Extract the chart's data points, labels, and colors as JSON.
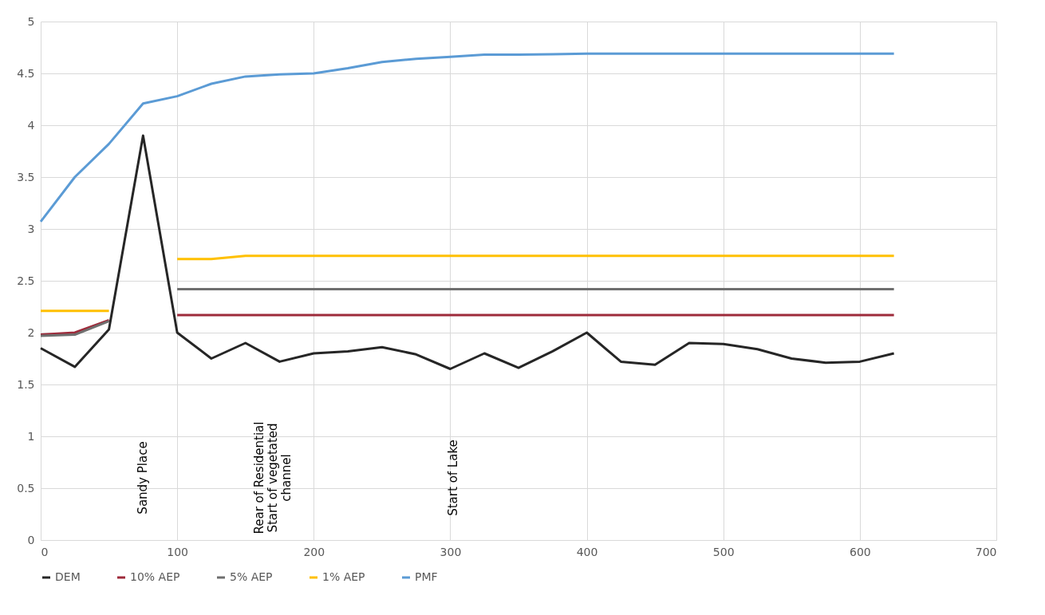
{
  "chart_data": {
    "type": "line",
    "x": [
      0,
      25,
      50,
      75,
      100,
      125,
      150,
      175,
      200,
      225,
      250,
      275,
      300,
      325,
      350,
      375,
      400,
      425,
      450,
      475,
      500,
      525,
      550,
      575,
      600,
      625
    ],
    "series": [
      {
        "name": "DEM",
        "color": "#262626",
        "values": [
          1.85,
          1.67,
          2.03,
          3.9,
          2.0,
          1.75,
          1.9,
          1.72,
          1.8,
          1.82,
          1.86,
          1.79,
          1.65,
          1.8,
          1.66,
          1.82,
          2.0,
          1.72,
          1.69,
          1.9,
          1.89,
          1.84,
          1.75,
          1.71,
          1.72,
          1.8
        ]
      },
      {
        "name": "10% AEP",
        "color": "#9e2a3a",
        "values": [
          1.98,
          2.0,
          2.12,
          null,
          2.17,
          2.17,
          2.17,
          2.17,
          2.17,
          2.17,
          2.17,
          2.17,
          2.17,
          2.17,
          2.17,
          2.17,
          2.17,
          2.17,
          2.17,
          2.17,
          2.17,
          2.17,
          2.17,
          2.17,
          2.17,
          2.17
        ]
      },
      {
        "name": "5% AEP",
        "color": "#6f6f6f",
        "values": [
          1.97,
          1.98,
          2.11,
          null,
          2.42,
          2.42,
          2.42,
          2.42,
          2.42,
          2.42,
          2.42,
          2.42,
          2.42,
          2.42,
          2.42,
          2.42,
          2.42,
          2.42,
          2.42,
          2.42,
          2.42,
          2.42,
          2.42,
          2.42,
          2.42,
          2.42
        ]
      },
      {
        "name": "1% AEP",
        "color": "#ffc000",
        "values": [
          2.21,
          2.21,
          2.21,
          null,
          2.71,
          2.71,
          2.74,
          2.74,
          2.74,
          2.74,
          2.74,
          2.74,
          2.74,
          2.74,
          2.74,
          2.74,
          2.74,
          2.74,
          2.74,
          2.74,
          2.74,
          2.74,
          2.74,
          2.74,
          2.74,
          2.74
        ]
      },
      {
        "name": "PMF",
        "color": "#5b9bd5",
        "values": [
          3.07,
          3.5,
          3.82,
          4.21,
          4.28,
          4.4,
          4.47,
          4.49,
          4.5,
          4.55,
          4.61,
          4.64,
          4.66,
          4.68,
          4.68,
          4.685,
          4.69,
          4.69,
          4.69,
          4.69,
          4.69,
          4.69,
          4.69,
          4.69,
          4.69,
          4.69
        ]
      }
    ],
    "xlim": [
      0,
      700
    ],
    "xticks": [
      0,
      100,
      200,
      300,
      400,
      500,
      600,
      700
    ],
    "ylim": [
      0,
      5
    ],
    "yticks": [
      0,
      0.5,
      1,
      1.5,
      2,
      2.5,
      3,
      3.5,
      4,
      4.5,
      5
    ],
    "annotations": [
      "Sandy Place",
      "Rear of Residential\nStart of vegetated\nchannel",
      "Start of Lake"
    ],
    "grid": true,
    "legend": "bottom",
    "marker": "none",
    "line_style": "solid"
  }
}
